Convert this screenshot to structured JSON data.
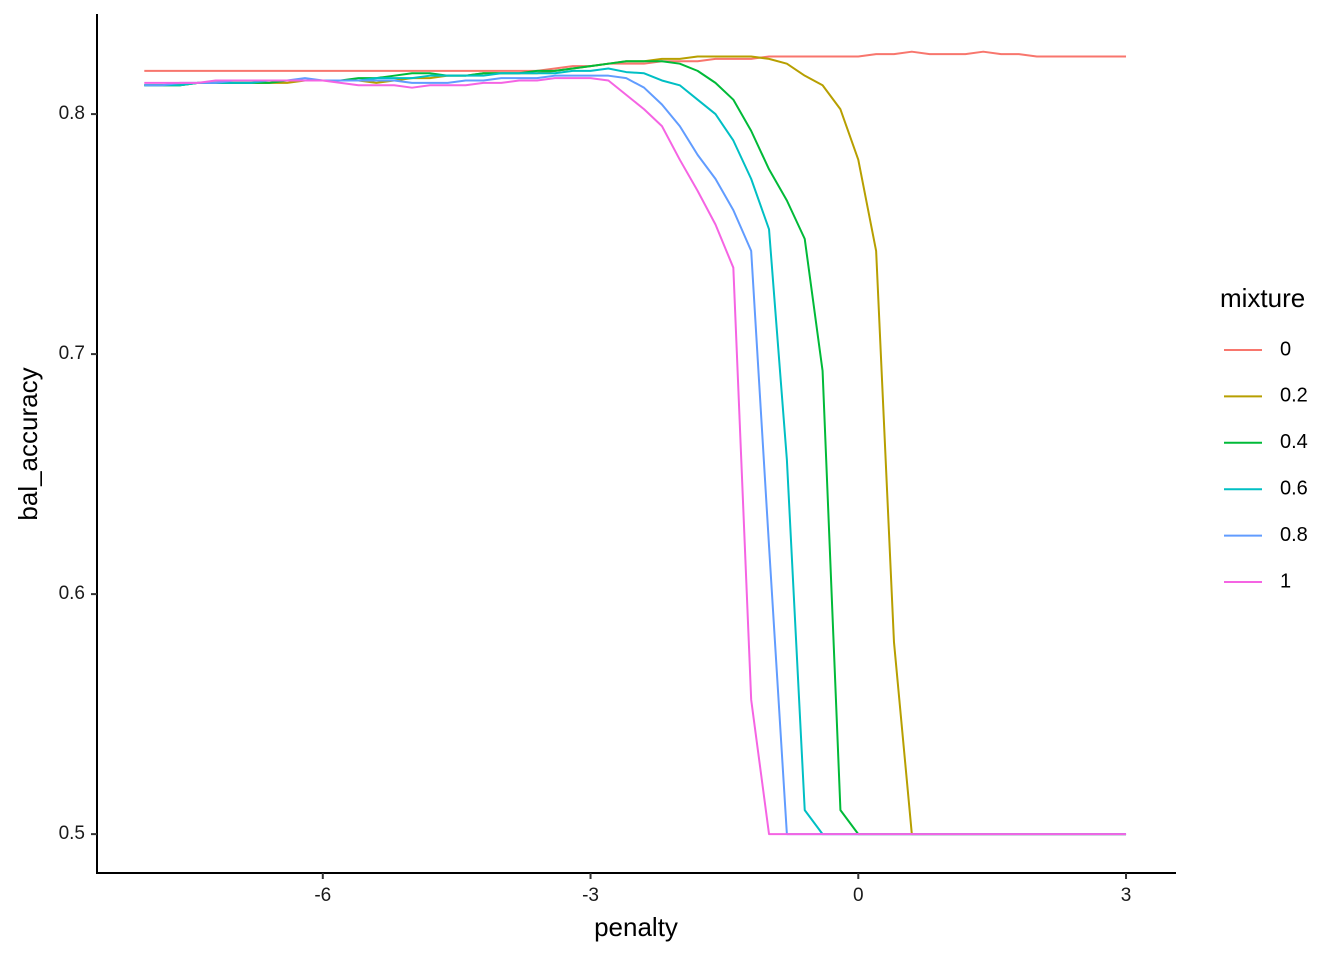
{
  "chart_data": {
    "type": "line",
    "x_label": "penalty",
    "y_label": "bal_accuracy",
    "legend_title": "mixture",
    "x": [
      -8,
      -7.8,
      -7.6,
      -7.4,
      -7.2,
      -7,
      -6.8,
      -6.6,
      -6.4,
      -6.2,
      -6,
      -5.8,
      -5.6,
      -5.4,
      -5.2,
      -5,
      -4.8,
      -4.6,
      -4.4,
      -4.2,
      -4,
      -3.8,
      -3.6,
      -3.4,
      -3.2,
      -3,
      -2.8,
      -2.6,
      -2.4,
      -2.2,
      -2,
      -1.8,
      -1.6,
      -1.4,
      -1.2,
      -1,
      -0.8,
      -0.6,
      -0.4,
      -0.2,
      0,
      0.2,
      0.4,
      0.6,
      0.8,
      1,
      1.2,
      1.4,
      1.6,
      1.8,
      2,
      2.2,
      2.4,
      2.6,
      2.8,
      3
    ],
    "series": [
      {
        "name": "0",
        "color": "#F8766D",
        "values": [
          0.818,
          0.818,
          0.818,
          0.818,
          0.818,
          0.818,
          0.818,
          0.818,
          0.818,
          0.818,
          0.818,
          0.818,
          0.818,
          0.818,
          0.818,
          0.818,
          0.818,
          0.818,
          0.818,
          0.818,
          0.818,
          0.818,
          0.818,
          0.819,
          0.82,
          0.82,
          0.821,
          0.821,
          0.821,
          0.822,
          0.822,
          0.822,
          0.823,
          0.823,
          0.823,
          0.824,
          0.824,
          0.824,
          0.824,
          0.824,
          0.824,
          0.825,
          0.825,
          0.826,
          0.825,
          0.825,
          0.825,
          0.826,
          0.825,
          0.825,
          0.824,
          0.824,
          0.824,
          0.824,
          0.824,
          0.824
        ]
      },
      {
        "name": "0.2",
        "color": "#B79F00",
        "values": [
          0.812,
          0.812,
          0.812,
          0.813,
          0.813,
          0.813,
          0.813,
          0.813,
          0.813,
          0.814,
          0.814,
          0.814,
          0.814,
          0.813,
          0.814,
          0.815,
          0.815,
          0.816,
          0.816,
          0.817,
          0.817,
          0.817,
          0.817,
          0.818,
          0.819,
          0.82,
          0.821,
          0.822,
          0.822,
          0.823,
          0.823,
          0.824,
          0.824,
          0.824,
          0.824,
          0.823,
          0.821,
          0.816,
          0.812,
          0.802,
          0.781,
          0.743,
          0.58,
          0.5,
          0.5,
          0.5,
          0.5,
          0.5,
          0.5,
          0.5,
          0.5,
          0.5,
          0.5,
          0.5,
          0.5,
          0.5
        ]
      },
      {
        "name": "0.4",
        "color": "#00BA38",
        "values": [
          0.812,
          0.812,
          0.812,
          0.813,
          0.813,
          0.813,
          0.813,
          0.813,
          0.814,
          0.814,
          0.814,
          0.814,
          0.815,
          0.815,
          0.816,
          0.817,
          0.817,
          0.816,
          0.816,
          0.817,
          0.817,
          0.817,
          0.818,
          0.818,
          0.819,
          0.82,
          0.821,
          0.822,
          0.822,
          0.822,
          0.821,
          0.818,
          0.813,
          0.806,
          0.793,
          0.777,
          0.764,
          0.748,
          0.693,
          0.51,
          0.5,
          0.5,
          0.5,
          0.5,
          0.5,
          0.5,
          0.5,
          0.5,
          0.5,
          0.5,
          0.5,
          0.5,
          0.5,
          0.5,
          0.5,
          0.5
        ]
      },
      {
        "name": "0.6",
        "color": "#00BFC4",
        "values": [
          0.812,
          0.812,
          0.812,
          0.813,
          0.813,
          0.813,
          0.813,
          0.814,
          0.814,
          0.814,
          0.814,
          0.814,
          0.814,
          0.815,
          0.815,
          0.815,
          0.816,
          0.816,
          0.816,
          0.816,
          0.817,
          0.817,
          0.817,
          0.817,
          0.818,
          0.818,
          0.819,
          0.8175,
          0.817,
          0.814,
          0.812,
          0.806,
          0.8,
          0.789,
          0.773,
          0.752,
          0.656,
          0.51,
          0.5,
          0.5,
          0.5,
          0.5,
          0.5,
          0.5,
          0.5,
          0.5,
          0.5,
          0.5,
          0.5,
          0.5,
          0.5,
          0.5,
          0.5,
          0.5,
          0.5,
          0.5
        ]
      },
      {
        "name": "0.8",
        "color": "#619CFF",
        "values": [
          0.812,
          0.812,
          0.813,
          0.813,
          0.813,
          0.814,
          0.814,
          0.814,
          0.814,
          0.815,
          0.814,
          0.814,
          0.814,
          0.814,
          0.814,
          0.813,
          0.813,
          0.813,
          0.814,
          0.814,
          0.815,
          0.815,
          0.815,
          0.816,
          0.816,
          0.816,
          0.816,
          0.815,
          0.811,
          0.804,
          0.795,
          0.783,
          0.773,
          0.76,
          0.743,
          0.62,
          0.5,
          0.5,
          0.5,
          0.5,
          0.5,
          0.5,
          0.5,
          0.5,
          0.5,
          0.5,
          0.5,
          0.5,
          0.5,
          0.5,
          0.5,
          0.5,
          0.5,
          0.5,
          0.5,
          0.5
        ]
      },
      {
        "name": "1",
        "color": "#F564E3",
        "values": [
          0.813,
          0.813,
          0.813,
          0.813,
          0.814,
          0.814,
          0.814,
          0.814,
          0.814,
          0.814,
          0.814,
          0.813,
          0.812,
          0.812,
          0.812,
          0.811,
          0.812,
          0.812,
          0.812,
          0.813,
          0.813,
          0.814,
          0.814,
          0.815,
          0.815,
          0.815,
          0.814,
          0.808,
          0.802,
          0.795,
          0.781,
          0.768,
          0.754,
          0.736,
          0.556,
          0.5,
          0.5,
          0.5,
          0.5,
          0.5,
          0.5,
          0.5,
          0.5,
          0.5,
          0.5,
          0.5,
          0.5,
          0.5,
          0.5,
          0.5,
          0.5,
          0.5,
          0.5,
          0.5,
          0.5,
          0.5
        ]
      }
    ],
    "xlim": [
      -8.53,
      3.56
    ],
    "ylim": [
      0.4838,
      0.8417
    ],
    "xticks": [
      -6,
      -3,
      0,
      3
    ],
    "yticks": [
      0.5,
      0.6,
      0.7,
      0.8
    ],
    "grid": false
  }
}
